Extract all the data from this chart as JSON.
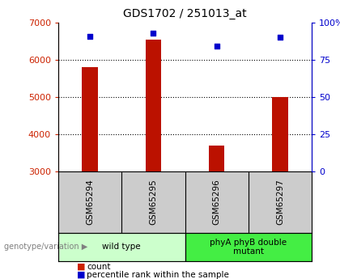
{
  "title": "GDS1702 / 251013_at",
  "samples": [
    "GSM65294",
    "GSM65295",
    "GSM65296",
    "GSM65297"
  ],
  "counts": [
    5800,
    6550,
    3700,
    5000
  ],
  "percentiles": [
    91,
    93,
    84,
    90
  ],
  "ylim_left": [
    3000,
    7000
  ],
  "ylim_right": [
    0,
    100
  ],
  "yticks_left": [
    3000,
    4000,
    5000,
    6000,
    7000
  ],
  "yticks_right": [
    0,
    25,
    50,
    75,
    100
  ],
  "ytick_labels_right": [
    "0",
    "25",
    "50",
    "75",
    "100%"
  ],
  "gridlines_at": [
    4000,
    5000,
    6000
  ],
  "groups": [
    {
      "label": "wild type",
      "sample_indices": [
        0,
        1
      ],
      "color": "#ccffcc"
    },
    {
      "label": "phyA phyB double\nmutant",
      "sample_indices": [
        2,
        3
      ],
      "color": "#44ee44"
    }
  ],
  "bar_color": "#bb1100",
  "point_color": "#0000cc",
  "left_tick_color": "#cc2200",
  "right_tick_color": "#0000cc",
  "bg_plot": "#ffffff",
  "bg_sample_row": "#cccccc",
  "legend_count_color": "#cc2200",
  "legend_pct_color": "#0000cc",
  "genotype_label": "genotype/variation",
  "bar_width": 0.25
}
